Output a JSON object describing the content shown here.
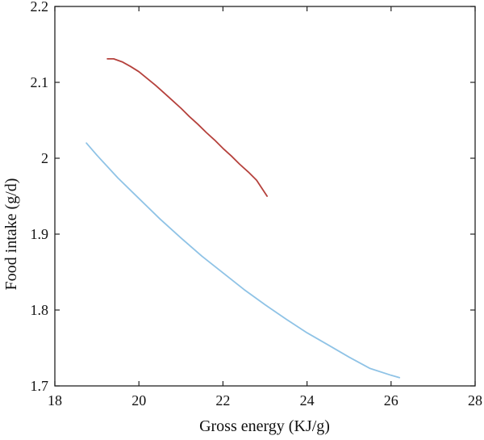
{
  "chart_data": {
    "type": "line",
    "title": "",
    "xlabel": "Gross energy (KJ/g)",
    "ylabel": "Food intake (g/d)",
    "xlim": [
      18,
      28
    ],
    "ylim": [
      1.7,
      2.2
    ],
    "xticks": [
      18,
      20,
      22,
      24,
      26,
      28
    ],
    "xtick_labels": [
      "18",
      "20",
      "22",
      "24",
      "26",
      "28"
    ],
    "yticks": [
      1.7,
      1.8,
      1.9,
      2.0,
      2.1,
      2.2
    ],
    "ytick_labels": [
      "1.7",
      "1.8",
      "1.9",
      "2",
      "2.1",
      "2.2"
    ],
    "grid": false,
    "legend": "none",
    "series": [
      {
        "color": "#b5413c",
        "x": [
          19.25,
          19.4,
          19.6,
          19.8,
          20.0,
          20.2,
          20.4,
          20.6,
          20.8,
          21.0,
          21.2,
          21.4,
          21.6,
          21.8,
          22.0,
          22.2,
          22.4,
          22.6,
          22.8,
          23.05
        ],
        "y": [
          2.131,
          2.131,
          2.127,
          2.121,
          2.114,
          2.105,
          2.096,
          2.086,
          2.076,
          2.066,
          2.055,
          2.045,
          2.034,
          2.024,
          2.013,
          2.003,
          1.992,
          1.982,
          1.971,
          1.95
        ]
      },
      {
        "color": "#8fc3e6",
        "x": [
          18.75,
          19.0,
          19.5,
          20.0,
          20.5,
          21.0,
          21.5,
          22.0,
          22.5,
          23.0,
          23.5,
          24.0,
          24.5,
          25.0,
          25.5,
          26.0,
          26.2
        ],
        "y": [
          2.02,
          2.004,
          1.974,
          1.947,
          1.92,
          1.895,
          1.871,
          1.849,
          1.827,
          1.807,
          1.788,
          1.77,
          1.754,
          1.738,
          1.723,
          1.714,
          1.711
        ]
      }
    ]
  }
}
